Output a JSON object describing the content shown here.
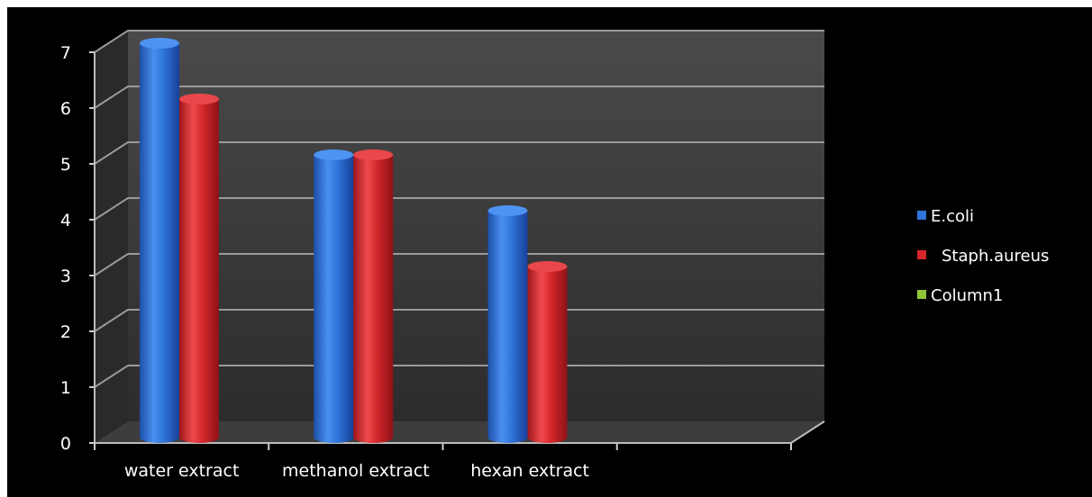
{
  "chart_data": {
    "type": "bar",
    "style": "3d-cylinder",
    "categories": [
      "water extract",
      "methanol extract",
      "hexan extract",
      ""
    ],
    "series": [
      {
        "name": "E.coli",
        "values": [
          7,
          5,
          4,
          null
        ],
        "color": "#2f74d8"
      },
      {
        "name": "Staph.aureus",
        "values": [
          6,
          5,
          3,
          null
        ],
        "color": "#d3262b"
      },
      {
        "name": "Column1",
        "values": [
          null,
          null,
          null,
          null
        ],
        "color": "#8fc43a"
      }
    ],
    "ylim": [
      0,
      7
    ],
    "yticks": [
      0,
      1,
      2,
      3,
      4,
      5,
      6,
      7
    ],
    "grid": true,
    "legend_position": "right",
    "background": "#000000",
    "wall_color": "#3b3b3b",
    "grid_color": "#9a9a9a"
  }
}
